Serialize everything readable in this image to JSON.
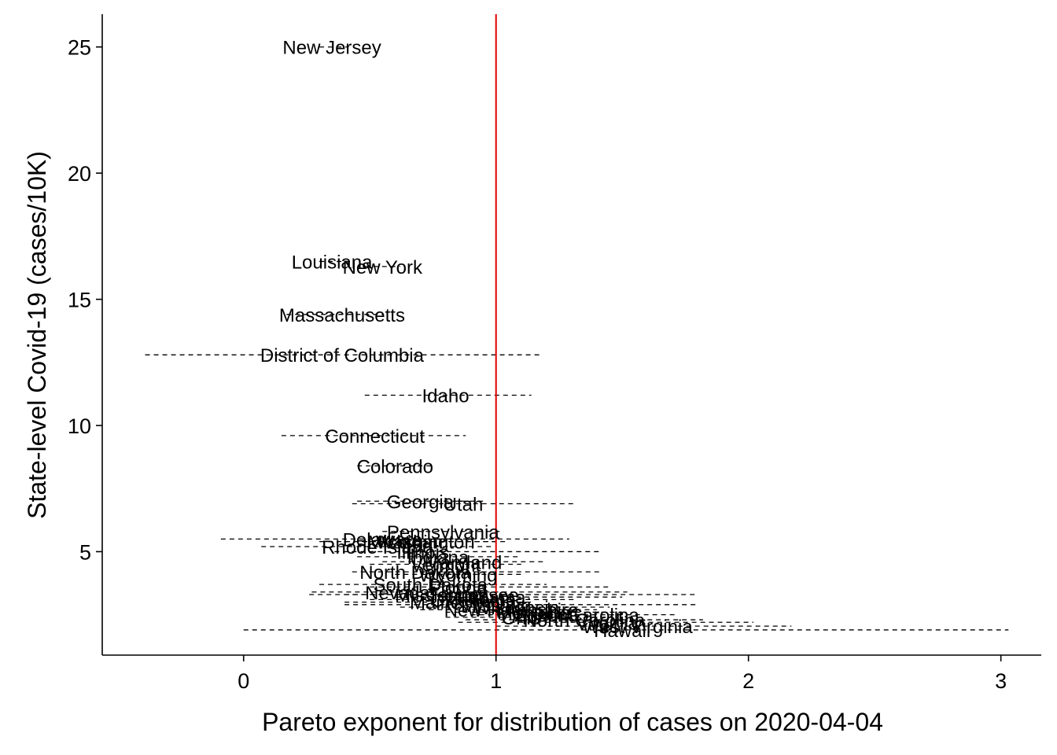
{
  "chart_data": {
    "type": "scatter",
    "xlabel": "Pareto exponent for distribution of cases on 2020-04-04",
    "ylabel": "State-level Covid-19 (cases/10K)",
    "xlim": [
      -0.56,
      3.16
    ],
    "ylim": [
      0.9,
      26.3
    ],
    "xticks": [
      0,
      1,
      2,
      3
    ],
    "yticks": [
      5,
      10,
      15,
      20,
      25
    ],
    "grid": false,
    "reference_line": {
      "x": 1,
      "color": "#e00000"
    },
    "points": [
      {
        "label": "New Jersey",
        "x": 0.35,
        "y": 25.0,
        "lo": 0.3,
        "hi": 0.41
      },
      {
        "label": "Louisiana",
        "x": 0.35,
        "y": 16.5,
        "lo": 0.3,
        "hi": 0.44
      },
      {
        "label": "New York",
        "x": 0.55,
        "y": 16.3,
        "lo": 0.48,
        "hi": 0.62
      },
      {
        "label": "Massachusetts",
        "x": 0.39,
        "y": 14.4,
        "lo": 0.17,
        "hi": 0.55
      },
      {
        "label": "District of Columbia",
        "x": 0.39,
        "y": 12.8,
        "lo": -0.39,
        "hi": 1.18
      },
      {
        "label": "Idaho",
        "x": 0.8,
        "y": 11.2,
        "lo": 0.48,
        "hi": 1.14
      },
      {
        "label": "Connecticut",
        "x": 0.52,
        "y": 9.6,
        "lo": 0.15,
        "hi": 0.88
      },
      {
        "label": "Colorado",
        "x": 0.6,
        "y": 8.4,
        "lo": 0.45,
        "hi": 0.75
      },
      {
        "label": "Georgia",
        "x": 0.7,
        "y": 7.0,
        "lo": 0.45,
        "hi": 0.96
      },
      {
        "label": "Utah",
        "x": 0.87,
        "y": 6.9,
        "lo": 0.43,
        "hi": 1.32
      },
      {
        "label": "Pennsylvania",
        "x": 0.79,
        "y": 5.8,
        "lo": 0.55,
        "hi": 1.03
      },
      {
        "label": "Delaware",
        "x": 0.55,
        "y": 5.5,
        "lo": -0.09,
        "hi": 1.29
      },
      {
        "label": "Michigan",
        "x": 0.64,
        "y": 5.4,
        "lo": 0.3,
        "hi": 1.0
      },
      {
        "label": "Washington",
        "x": 0.72,
        "y": 5.4,
        "lo": 0.4,
        "hi": 1.04
      },
      {
        "label": "Rhode Island",
        "x": 0.53,
        "y": 5.2,
        "lo": 0.07,
        "hi": 0.98
      },
      {
        "label": "Illinois",
        "x": 0.71,
        "y": 5.0,
        "lo": 0.36,
        "hi": 1.42
      },
      {
        "label": "Indiana",
        "x": 0.77,
        "y": 4.8,
        "lo": 0.45,
        "hi": 1.1
      },
      {
        "label": "Vermont",
        "x": 0.8,
        "y": 4.5,
        "lo": 0.5,
        "hi": 1.1
      },
      {
        "label": "Maryland",
        "x": 0.87,
        "y": 4.6,
        "lo": 0.55,
        "hi": 1.2
      },
      {
        "label": "North Dakota",
        "x": 0.68,
        "y": 4.2,
        "lo": 0.43,
        "hi": 1.42
      },
      {
        "label": "Wyoming",
        "x": 0.85,
        "y": 4.1,
        "lo": 0.6,
        "hi": 1.1
      },
      {
        "label": "South Dakota",
        "x": 0.74,
        "y": 3.7,
        "lo": 0.3,
        "hi": 1.2
      },
      {
        "label": "Nevada",
        "x": 0.61,
        "y": 3.4,
        "lo": 0.27,
        "hi": 1.52
      },
      {
        "label": "Florida",
        "x": 0.85,
        "y": 3.6,
        "lo": 0.5,
        "hi": 1.45
      },
      {
        "label": "Mississippi",
        "x": 0.78,
        "y": 3.3,
        "lo": 0.4,
        "hi": 1.17
      },
      {
        "label": "Tennessee",
        "x": 0.91,
        "y": 3.3,
        "lo": 0.26,
        "hi": 1.79
      },
      {
        "label": "Alabama",
        "x": 0.97,
        "y": 3.2,
        "lo": 0.6,
        "hi": 1.5
      },
      {
        "label": "Oklahoma",
        "x": 0.91,
        "y": 3.1,
        "lo": 0.5,
        "hi": 1.32
      },
      {
        "label": "Maine",
        "x": 0.76,
        "y": 3.0,
        "lo": 0.4,
        "hi": 1.15
      },
      {
        "label": "Missouri",
        "x": 1.0,
        "y": 2.9,
        "lo": 0.4,
        "hi": 1.79
      },
      {
        "label": "Wisconsin",
        "x": 1.08,
        "y": 2.8,
        "lo": 0.62,
        "hi": 1.45
      },
      {
        "label": "New Hampshire",
        "x": 1.06,
        "y": 2.7,
        "lo": 0.7,
        "hi": 1.4
      },
      {
        "label": "Montana",
        "x": 1.15,
        "y": 2.6,
        "lo": 0.8,
        "hi": 1.5
      },
      {
        "label": "Arizona",
        "x": 1.2,
        "y": 2.5,
        "lo": 0.9,
        "hi": 1.55
      },
      {
        "label": "Ohio",
        "x": 1.1,
        "y": 2.4,
        "lo": 0.8,
        "hi": 1.45
      },
      {
        "label": "South Carolina",
        "x": 1.32,
        "y": 2.5,
        "lo": 0.9,
        "hi": 1.72
      },
      {
        "label": "North Carolina",
        "x": 1.35,
        "y": 2.3,
        "lo": 0.88,
        "hi": 1.82
      },
      {
        "label": "Virginia",
        "x": 1.44,
        "y": 2.2,
        "lo": 0.85,
        "hi": 2.02
      },
      {
        "label": "West Virginia",
        "x": 1.56,
        "y": 2.05,
        "lo": 1.0,
        "hi": 2.17
      },
      {
        "label": "Hawaii",
        "x": 1.5,
        "y": 1.9,
        "lo": 0.0,
        "hi": 3.03
      }
    ]
  }
}
